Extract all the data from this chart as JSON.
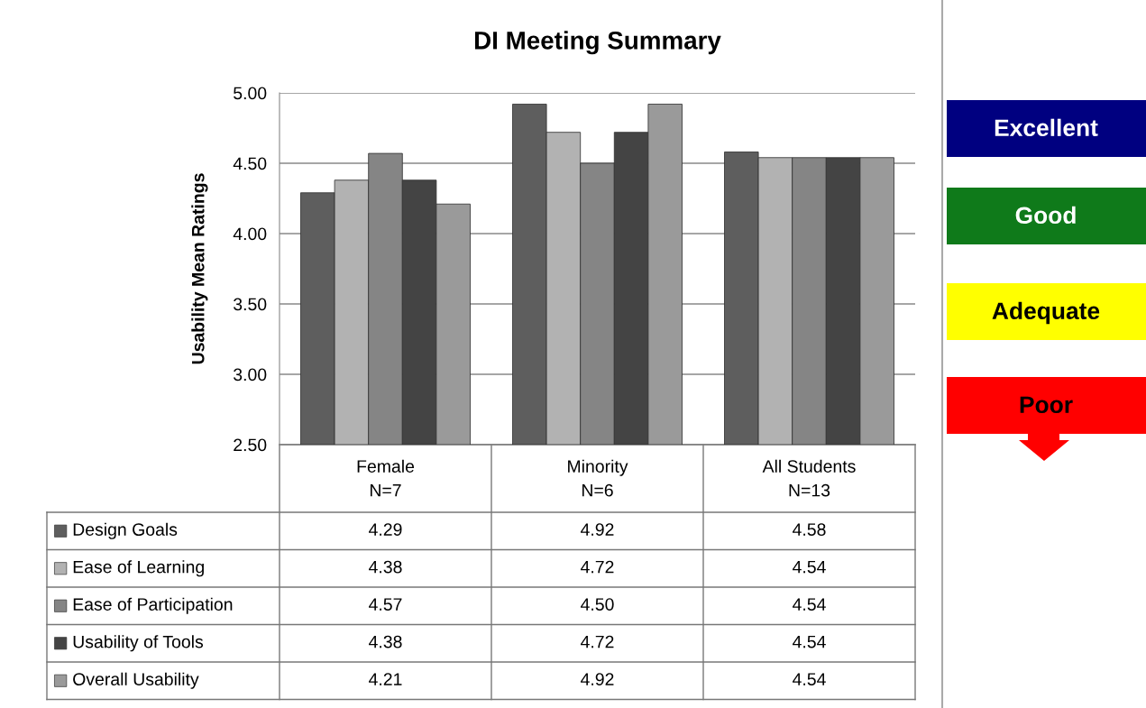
{
  "chart_data": {
    "type": "bar",
    "title": "DI Meeting Summary",
    "ylabel": "Usability Mean Ratings",
    "categories": [
      "Female\nN=7",
      "Minority\nN=6",
      "All Students\nN=13"
    ],
    "series": [
      {
        "name": "Design Goals",
        "color": "#5e5e5e",
        "values": [
          4.29,
          4.92,
          4.58
        ],
        "value_labels": [
          "4.29",
          "4.92",
          "4.58"
        ]
      },
      {
        "name": "Ease of Learning",
        "color": "#b2b2b2",
        "values": [
          4.38,
          4.72,
          4.54
        ],
        "value_labels": [
          "4.38",
          "4.72",
          "4.54"
        ]
      },
      {
        "name": "Ease of Participation",
        "color": "#858585",
        "values": [
          4.57,
          4.5,
          4.54
        ],
        "value_labels": [
          "4.57",
          "4.50",
          "4.54"
        ]
      },
      {
        "name": "Usability of Tools",
        "color": "#444444",
        "values": [
          4.38,
          4.72,
          4.54
        ],
        "value_labels": [
          "4.38",
          "4.72",
          "4.54"
        ]
      },
      {
        "name": "Overall Usability",
        "color": "#9a9a9a",
        "values": [
          4.21,
          4.92,
          4.54
        ],
        "value_labels": [
          "4.21",
          "4.92",
          "4.54"
        ]
      }
    ],
    "ylim": [
      2.5,
      5.0
    ],
    "yticks": [
      {
        "value": 2.5,
        "label": "2.50"
      },
      {
        "value": 3.0,
        "label": "3.00"
      },
      {
        "value": 3.5,
        "label": "3.50"
      },
      {
        "value": 4.0,
        "label": "4.00"
      },
      {
        "value": 4.5,
        "label": "4.50"
      },
      {
        "value": 5.0,
        "label": "5.00"
      }
    ],
    "grid": "y",
    "legend": "bottom left",
    "annotations": [
      "Excellent",
      "Good",
      "Adequate",
      "Poor"
    ]
  }
}
